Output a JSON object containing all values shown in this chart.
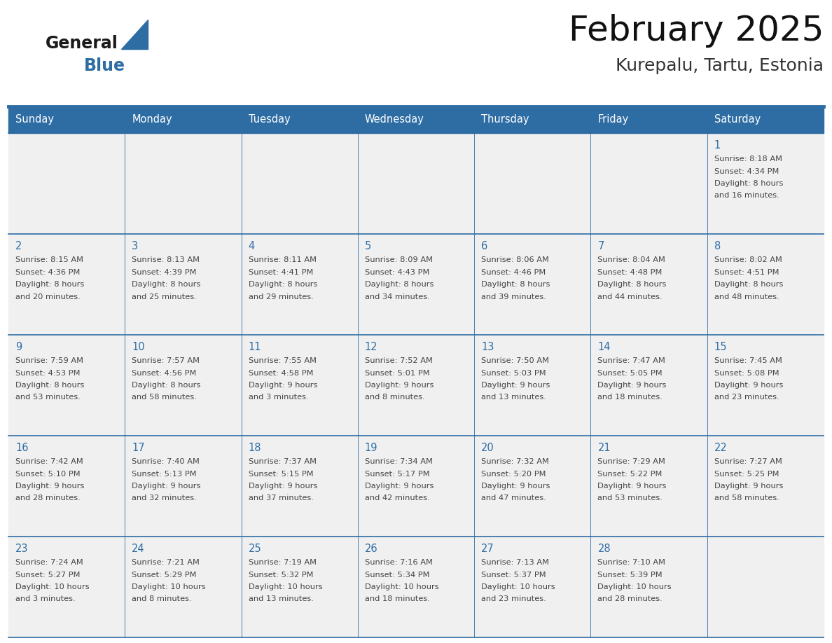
{
  "title": "February 2025",
  "subtitle": "Kurepalu, Tartu, Estonia",
  "header_bg": "#2E6DA4",
  "header_text_color": "#FFFFFF",
  "day_names": [
    "Sunday",
    "Monday",
    "Tuesday",
    "Wednesday",
    "Thursday",
    "Friday",
    "Saturday"
  ],
  "title_font_size": 36,
  "subtitle_font_size": 18,
  "cell_bg": "#F0F0F0",
  "line_color": "#2E6DA4",
  "day_num_color": "#2E6DA4",
  "text_color": "#444444",
  "logo_general_color": "#1a1a1a",
  "logo_blue_color": "#2E6DA4",
  "logo_triangle_color": "#2E6DA4",
  "calendar": [
    [
      null,
      null,
      null,
      null,
      null,
      null,
      {
        "day": "1",
        "sunrise": "8:18 AM",
        "sunset": "4:34 PM",
        "dl1": "Daylight: 8 hours",
        "dl2": "and 16 minutes."
      }
    ],
    [
      {
        "day": "2",
        "sunrise": "8:15 AM",
        "sunset": "4:36 PM",
        "dl1": "Daylight: 8 hours",
        "dl2": "and 20 minutes."
      },
      {
        "day": "3",
        "sunrise": "8:13 AM",
        "sunset": "4:39 PM",
        "dl1": "Daylight: 8 hours",
        "dl2": "and 25 minutes."
      },
      {
        "day": "4",
        "sunrise": "8:11 AM",
        "sunset": "4:41 PM",
        "dl1": "Daylight: 8 hours",
        "dl2": "and 29 minutes."
      },
      {
        "day": "5",
        "sunrise": "8:09 AM",
        "sunset": "4:43 PM",
        "dl1": "Daylight: 8 hours",
        "dl2": "and 34 minutes."
      },
      {
        "day": "6",
        "sunrise": "8:06 AM",
        "sunset": "4:46 PM",
        "dl1": "Daylight: 8 hours",
        "dl2": "and 39 minutes."
      },
      {
        "day": "7",
        "sunrise": "8:04 AM",
        "sunset": "4:48 PM",
        "dl1": "Daylight: 8 hours",
        "dl2": "and 44 minutes."
      },
      {
        "day": "8",
        "sunrise": "8:02 AM",
        "sunset": "4:51 PM",
        "dl1": "Daylight: 8 hours",
        "dl2": "and 48 minutes."
      }
    ],
    [
      {
        "day": "9",
        "sunrise": "7:59 AM",
        "sunset": "4:53 PM",
        "dl1": "Daylight: 8 hours",
        "dl2": "and 53 minutes."
      },
      {
        "day": "10",
        "sunrise": "7:57 AM",
        "sunset": "4:56 PM",
        "dl1": "Daylight: 8 hours",
        "dl2": "and 58 minutes."
      },
      {
        "day": "11",
        "sunrise": "7:55 AM",
        "sunset": "4:58 PM",
        "dl1": "Daylight: 9 hours",
        "dl2": "and 3 minutes."
      },
      {
        "day": "12",
        "sunrise": "7:52 AM",
        "sunset": "5:01 PM",
        "dl1": "Daylight: 9 hours",
        "dl2": "and 8 minutes."
      },
      {
        "day": "13",
        "sunrise": "7:50 AM",
        "sunset": "5:03 PM",
        "dl1": "Daylight: 9 hours",
        "dl2": "and 13 minutes."
      },
      {
        "day": "14",
        "sunrise": "7:47 AM",
        "sunset": "5:05 PM",
        "dl1": "Daylight: 9 hours",
        "dl2": "and 18 minutes."
      },
      {
        "day": "15",
        "sunrise": "7:45 AM",
        "sunset": "5:08 PM",
        "dl1": "Daylight: 9 hours",
        "dl2": "and 23 minutes."
      }
    ],
    [
      {
        "day": "16",
        "sunrise": "7:42 AM",
        "sunset": "5:10 PM",
        "dl1": "Daylight: 9 hours",
        "dl2": "and 28 minutes."
      },
      {
        "day": "17",
        "sunrise": "7:40 AM",
        "sunset": "5:13 PM",
        "dl1": "Daylight: 9 hours",
        "dl2": "and 32 minutes."
      },
      {
        "day": "18",
        "sunrise": "7:37 AM",
        "sunset": "5:15 PM",
        "dl1": "Daylight: 9 hours",
        "dl2": "and 37 minutes."
      },
      {
        "day": "19",
        "sunrise": "7:34 AM",
        "sunset": "5:17 PM",
        "dl1": "Daylight: 9 hours",
        "dl2": "and 42 minutes."
      },
      {
        "day": "20",
        "sunrise": "7:32 AM",
        "sunset": "5:20 PM",
        "dl1": "Daylight: 9 hours",
        "dl2": "and 47 minutes."
      },
      {
        "day": "21",
        "sunrise": "7:29 AM",
        "sunset": "5:22 PM",
        "dl1": "Daylight: 9 hours",
        "dl2": "and 53 minutes."
      },
      {
        "day": "22",
        "sunrise": "7:27 AM",
        "sunset": "5:25 PM",
        "dl1": "Daylight: 9 hours",
        "dl2": "and 58 minutes."
      }
    ],
    [
      {
        "day": "23",
        "sunrise": "7:24 AM",
        "sunset": "5:27 PM",
        "dl1": "Daylight: 10 hours",
        "dl2": "and 3 minutes."
      },
      {
        "day": "24",
        "sunrise": "7:21 AM",
        "sunset": "5:29 PM",
        "dl1": "Daylight: 10 hours",
        "dl2": "and 8 minutes."
      },
      {
        "day": "25",
        "sunrise": "7:19 AM",
        "sunset": "5:32 PM",
        "dl1": "Daylight: 10 hours",
        "dl2": "and 13 minutes."
      },
      {
        "day": "26",
        "sunrise": "7:16 AM",
        "sunset": "5:34 PM",
        "dl1": "Daylight: 10 hours",
        "dl2": "and 18 minutes."
      },
      {
        "day": "27",
        "sunrise": "7:13 AM",
        "sunset": "5:37 PM",
        "dl1": "Daylight: 10 hours",
        "dl2": "and 23 minutes."
      },
      {
        "day": "28",
        "sunrise": "7:10 AM",
        "sunset": "5:39 PM",
        "dl1": "Daylight: 10 hours",
        "dl2": "and 28 minutes."
      },
      null
    ]
  ]
}
